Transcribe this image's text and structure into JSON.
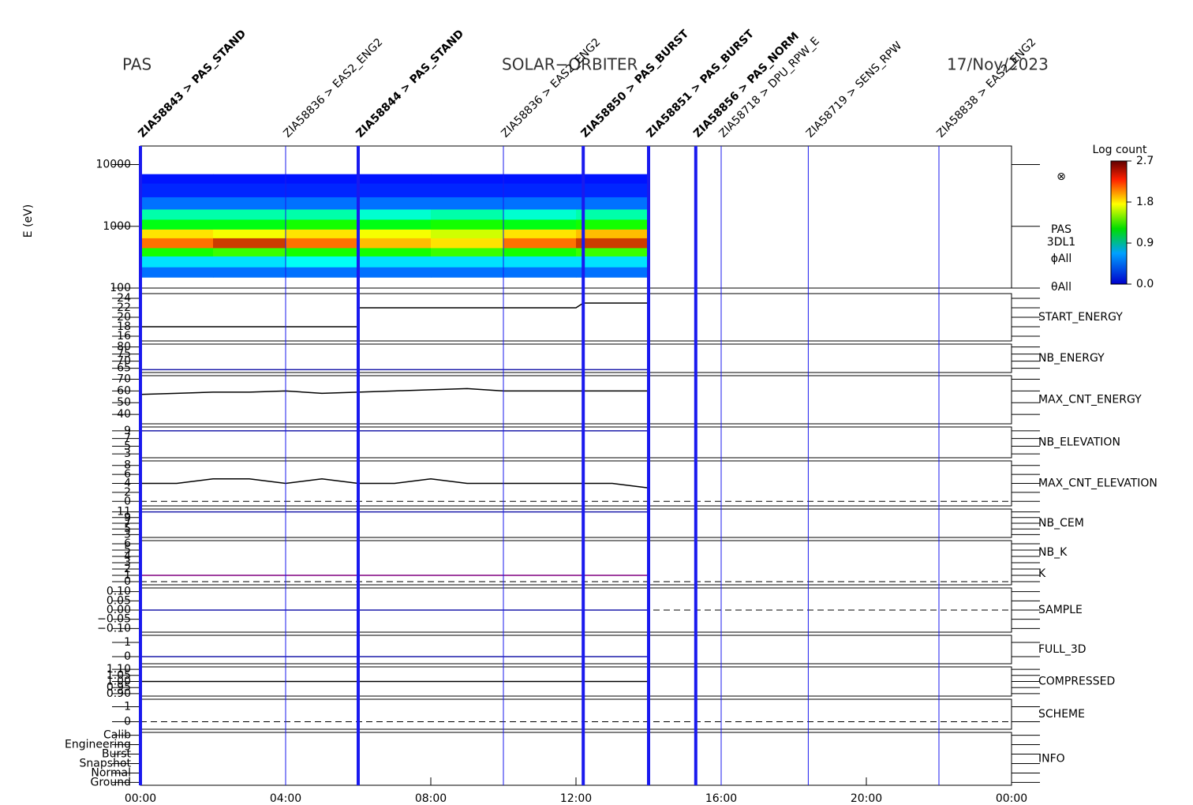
{
  "chart_data": {
    "type": "multipanel",
    "header": {
      "left": "PAS",
      "center": "SOLAR−ORBITER",
      "right": "17/Nov/2023"
    },
    "xlim": [
      0,
      24
    ],
    "xticks": [
      {
        "value": 0,
        "label": "00:00"
      },
      {
        "value": 4,
        "label": "04:00"
      },
      {
        "value": 8,
        "label": "08:00"
      },
      {
        "value": 12,
        "label": "12:00"
      },
      {
        "value": 16,
        "label": "16:00"
      },
      {
        "value": 20,
        "label": "20:00"
      },
      {
        "value": 24,
        "label": "00:00"
      }
    ],
    "events": [
      {
        "x": 0,
        "label": "ZIA58843 > PAS_STAND",
        "thick": true
      },
      {
        "x": 4,
        "label": "ZIA58836 > EAS2_ENG2",
        "thick": false
      },
      {
        "x": 6,
        "label": "ZIA58844 > PAS_STAND",
        "thick": true
      },
      {
        "x": 10,
        "label": "ZIA58836 > EAS2_ENG2",
        "thick": false
      },
      {
        "x": 12.2,
        "label": "ZIA58850 > PAS_BURST",
        "thick": true
      },
      {
        "x": 14,
        "label": "ZIA58851 > PAS_BURST",
        "thick": true
      },
      {
        "x": 15.3,
        "label": "ZIA58856 > PAS_NORM",
        "thick": true
      },
      {
        "x": 16,
        "label": "ZIA58718 > DPU_RPW_E",
        "thick": false
      },
      {
        "x": 18.4,
        "label": "ZIA58719 > SENS_RPW",
        "thick": false
      },
      {
        "x": 22,
        "label": "ZIA58838 > EAS2_ENG2",
        "thick": false
      }
    ],
    "spectrogram": {
      "ylabel": "E (eV)",
      "log": true,
      "ylim": [
        100,
        20000
      ],
      "yticks": [
        100,
        1000,
        10000
      ],
      "labels": [
        "PAS",
        "3DL1",
        "ϕAll",
        "θAll"
      ],
      "colorbar_title": "Log count",
      "clim": [
        0,
        2.7
      ],
      "cticks": [
        {
          "value": 0,
          "label": "0.0"
        },
        0.9,
        1.8,
        2.7
      ],
      "x_edges": [
        0,
        2,
        4,
        6,
        8,
        10,
        12,
        14
      ],
      "e_edges": [
        150,
        220,
        330,
        450,
        650,
        900,
        1300,
        1900,
        3000,
        5000,
        7000
      ],
      "z": [
        [
          0.3,
          0.6,
          1.4,
          2.4,
          2.1,
          1.3,
          0.9,
          0.3,
          0.1,
          0.05
        ],
        [
          0.3,
          0.6,
          1.5,
          2.5,
          2.0,
          1.3,
          0.9,
          0.3,
          0.1,
          0.05
        ],
        [
          0.3,
          0.7,
          1.4,
          2.4,
          2.1,
          1.4,
          0.9,
          0.3,
          0.1,
          0.05
        ],
        [
          0.3,
          0.6,
          1.4,
          2.2,
          2.0,
          1.3,
          0.8,
          0.3,
          0.1,
          0.05
        ],
        [
          0.3,
          0.6,
          1.5,
          2.1,
          1.9,
          1.4,
          0.9,
          0.3,
          0.1,
          0.05
        ],
        [
          0.3,
          0.6,
          1.4,
          2.4,
          2.1,
          1.3,
          0.8,
          0.3,
          0.1,
          0.05
        ],
        [
          0.3,
          0.6,
          1.5,
          2.5,
          2.2,
          1.4,
          0.9,
          0.3,
          0.1,
          0.05
        ]
      ]
    },
    "panels": [
      {
        "labels": [
          {
            "text": "START_ENERGY",
            "color": "#000"
          }
        ],
        "ylim": [
          15,
          25
        ],
        "yticks": [
          16,
          18,
          20,
          22,
          24
        ],
        "zero_line": false,
        "series": [
          {
            "color": "#000",
            "x": [
              0,
              6,
              6,
              12,
              12.2,
              14
            ],
            "values": [
              18,
              18,
              22,
              22,
              23,
              23
            ]
          }
        ]
      },
      {
        "labels": [
          {
            "text": "NB_ENERGY",
            "color": "#1a1aaa"
          }
        ],
        "ylim": [
          62,
          82
        ],
        "yticks": [
          65,
          70,
          75,
          80
        ],
        "zero_line": false,
        "series": [
          {
            "color": "#1a1aaa",
            "x": [
              0,
              14
            ],
            "values": [
              64,
              64
            ]
          }
        ]
      },
      {
        "labels": [
          {
            "text": "MAX_CNT_ENERGY",
            "color": "#000"
          }
        ],
        "ylim": [
          32,
          73
        ],
        "yticks": [
          40,
          50,
          60,
          70
        ],
        "zero_line": false,
        "series": [
          {
            "color": "#000",
            "x": [
              0,
              1,
              2,
              3,
              4,
              5,
              6,
              7,
              8,
              9,
              10,
              11,
              12,
              13,
              14
            ],
            "values": [
              57,
              58,
              59,
              59,
              60,
              58,
              59,
              60,
              61,
              62,
              60,
              60,
              60,
              60,
              60
            ]
          }
        ]
      },
      {
        "labels": [
          {
            "text": "NB_ELEVATION",
            "color": "#1a1aaa"
          }
        ],
        "ylim": [
          2,
          10
        ],
        "yticks": [
          3,
          5,
          7,
          9
        ],
        "zero_line": false,
        "series": [
          {
            "color": "#1a1aaa",
            "x": [
              0,
              14
            ],
            "values": [
              9,
              9
            ]
          }
        ]
      },
      {
        "labels": [
          {
            "text": "MAX_CNT_ELEVATION",
            "color": "#000"
          }
        ],
        "ylim": [
          -1,
          9
        ],
        "yticks": [
          0,
          2,
          4,
          6,
          8
        ],
        "zero_line": true,
        "series": [
          {
            "color": "#000",
            "x": [
              0,
              1,
              2,
              3,
              4,
              5,
              6,
              7,
              8,
              9,
              10,
              11,
              12,
              13,
              14
            ],
            "values": [
              4,
              4,
              5,
              5,
              4,
              5,
              4,
              4,
              5,
              4,
              4,
              4,
              4,
              4,
              3
            ]
          }
        ]
      },
      {
        "labels": [
          {
            "text": "NB_CEM",
            "color": "#1a1aaa"
          }
        ],
        "ylim": [
          2,
          12
        ],
        "yticks": [
          3,
          5,
          7,
          9,
          11
        ],
        "zero_line": false,
        "series": [
          {
            "color": "#1a1aaa",
            "x": [
              0,
              14
            ],
            "values": [
              11,
              11
            ]
          }
        ]
      },
      {
        "labels": [
          {
            "text": "NB_K",
            "color": "#cc2222"
          },
          {
            "text": "K",
            "color": "#1a1aaa"
          }
        ],
        "ylim": [
          -0.5,
          6.5
        ],
        "yticks": [
          0,
          1,
          2,
          3,
          4,
          5,
          6
        ],
        "zero_line": true,
        "series": [
          {
            "color": "#800080",
            "x": [
              0,
              14
            ],
            "values": [
              1,
              1
            ]
          }
        ]
      },
      {
        "labels": [
          {
            "text": "SAMPLE",
            "color": "#1a1aaa"
          }
        ],
        "ylim": [
          -0.12,
          0.12
        ],
        "yticks": [
          {
            "value": -0.1,
            "label": "−0.10"
          },
          {
            "value": -0.05,
            "label": "−0.05"
          },
          {
            "value": 0,
            "label": "0.00"
          },
          {
            "value": 0.05,
            "label": "0.05"
          },
          {
            "value": 0.1,
            "label": "0.10"
          }
        ],
        "zero_line": true,
        "series": [
          {
            "color": "#1a1aaa",
            "x": [
              0,
              14
            ],
            "values": [
              0,
              0
            ]
          }
        ]
      },
      {
        "labels": [
          {
            "text": "FULL_3D",
            "color": "#1a1aaa"
          }
        ],
        "ylim": [
          -0.5,
          1.5
        ],
        "yticks": [
          0,
          1
        ],
        "zero_line": false,
        "series": [
          {
            "color": "#1a1aaa",
            "x": [
              0,
              14
            ],
            "values": [
              0,
              0
            ]
          }
        ]
      },
      {
        "labels": [
          {
            "text": "COMPRESSED",
            "color": "#000"
          }
        ],
        "ylim": [
          0.88,
          1.12
        ],
        "yticks": [
          {
            "value": 0.9,
            "label": "0.90"
          },
          {
            "value": 0.95,
            "label": "0.95"
          },
          {
            "value": 1,
            "label": "1.00"
          },
          {
            "value": 1.05,
            "label": "1.05"
          },
          {
            "value": 1.1,
            "label": "1.10"
          }
        ],
        "zero_line": false,
        "series": [
          {
            "color": "#000",
            "x": [
              0,
              14
            ],
            "values": [
              1,
              1
            ]
          }
        ]
      },
      {
        "labels": [
          {
            "text": "SCHEME",
            "color": "#000"
          }
        ],
        "ylim": [
          -0.5,
          1.5
        ],
        "yticks": [
          0,
          1
        ],
        "zero_line": true,
        "series": []
      },
      {
        "labels": [
          {
            "text": "INFO",
            "color": "#000"
          }
        ],
        "ylim": [
          -0.3,
          5.3
        ],
        "yticks": [
          {
            "value": 0,
            "label": "Ground"
          },
          {
            "value": 1,
            "label": "Normal"
          },
          {
            "value": 2,
            "label": "Snapshot"
          },
          {
            "value": 3,
            "label": "Burst"
          },
          {
            "value": 4,
            "label": "Engineering"
          },
          {
            "value": 5,
            "label": "Calib"
          }
        ],
        "zero_line": false,
        "series": []
      }
    ]
  }
}
